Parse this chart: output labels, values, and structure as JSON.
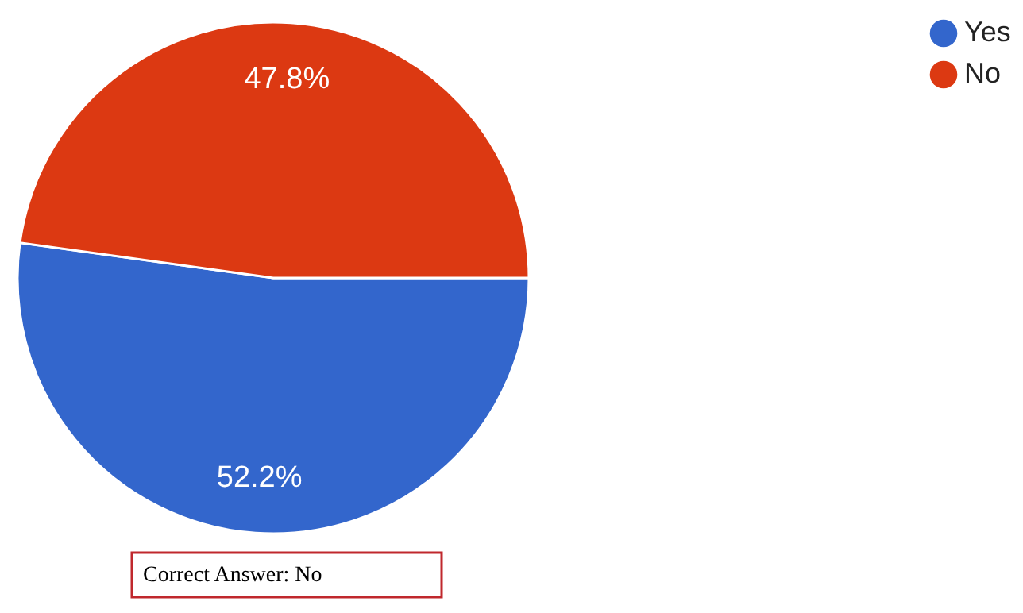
{
  "chart_data": {
    "type": "pie",
    "categories": [
      "Yes",
      "No"
    ],
    "values": [
      52.2,
      47.8
    ],
    "colors": [
      "#3366cc",
      "#dc3912"
    ],
    "value_labels": [
      "52.2%",
      "47.8%"
    ],
    "legend": "top right",
    "annotations": [
      "Correct Answer: No"
    ]
  }
}
